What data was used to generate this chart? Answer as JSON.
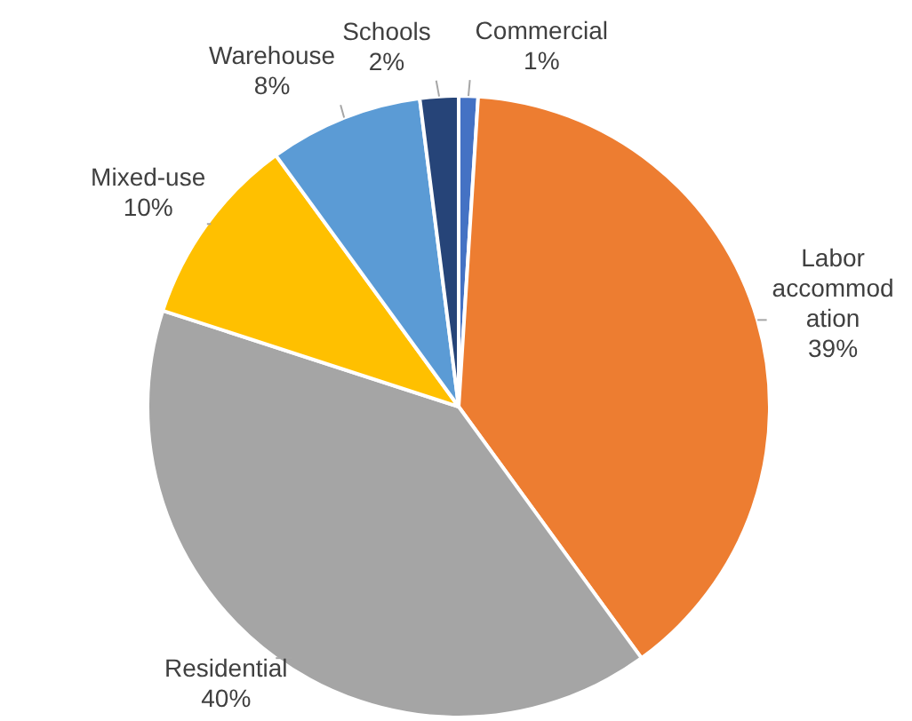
{
  "chart_data": {
    "type": "pie",
    "categories": [
      "Commercial",
      "Labor accommodation",
      "Residential",
      "Mixed-use",
      "Warehouse",
      "Schools"
    ],
    "values": [
      1,
      39,
      40,
      10,
      8,
      2
    ],
    "value_labels": [
      "1%",
      "39%",
      "40%",
      "10%",
      "8%",
      "2%"
    ],
    "colors": [
      "#4472c4",
      "#ed7d31",
      "#a5a5a5",
      "#ffc000",
      "#5b9bd5",
      "#264478"
    ],
    "legend": false
  }
}
